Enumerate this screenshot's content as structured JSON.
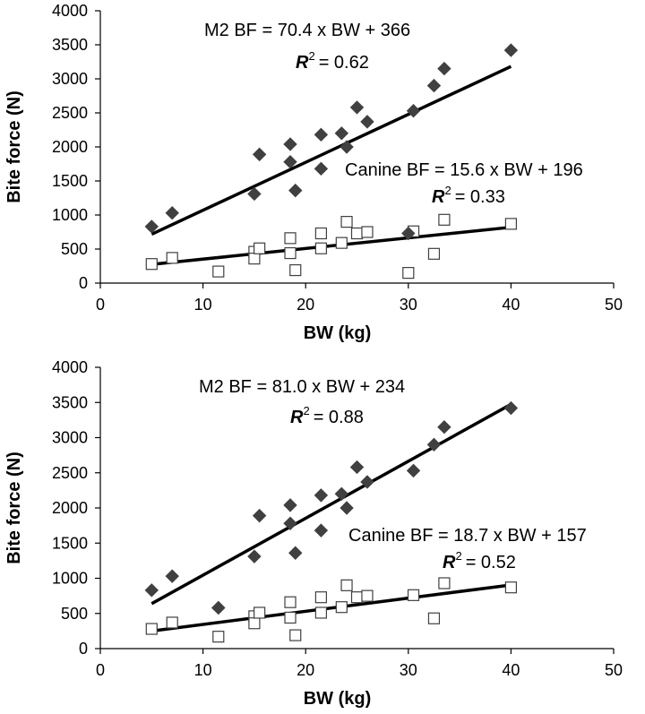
{
  "chart_data": [
    {
      "type": "scatter",
      "xlabel": "BW (kg)",
      "ylabel": "Bite force (N)",
      "xlim": [
        0,
        50
      ],
      "ylim": [
        0,
        4000
      ],
      "xticks": [
        "0",
        "10",
        "20",
        "30",
        "40",
        "50"
      ],
      "yticks": [
        "0",
        "500",
        "1000",
        "1500",
        "2000",
        "2500",
        "3000",
        "3500",
        "4000"
      ],
      "grid": false,
      "series": [
        {
          "marker": "filled-diamond",
          "color": "#404040",
          "x": [
            5,
            7,
            15,
            15.5,
            18.5,
            18.5,
            19,
            21.5,
            21.5,
            23.5,
            24,
            25,
            26,
            30.5,
            32.5,
            33.5,
            40
          ],
          "y": [
            830,
            1030,
            1310,
            1890,
            2040,
            1780,
            1360,
            2180,
            1680,
            2200,
            2000,
            2580,
            2370,
            2530,
            2900,
            3150,
            3420
          ],
          "fit": {
            "slope": 70.4,
            "intercept": 366,
            "x_range": [
              5,
              40
            ]
          },
          "equation": "M2 BF = 70.4 x BW + 366",
          "r2_value": "= 0.62"
        },
        {
          "marker": "open-square",
          "color": "#404040",
          "x": [
            5,
            7,
            11.5,
            15,
            15,
            15.5,
            18.5,
            18.5,
            19,
            21.5,
            21.5,
            23.5,
            24,
            25,
            26,
            30,
            30.5,
            32.5,
            33.5,
            40
          ],
          "y": [
            280,
            370,
            170,
            460,
            360,
            510,
            660,
            440,
            190,
            730,
            510,
            590,
            900,
            730,
            750,
            150,
            760,
            430,
            930,
            870
          ],
          "fit": {
            "slope": 15.6,
            "intercept": 196,
            "x_range": [
              5,
              40
            ]
          },
          "equation": "Canine BF = 15.6 x BW + 196",
          "r2_value": "= 0.33"
        }
      ],
      "extra_points": [
        {
          "marker": "filled-diamond",
          "x": 30,
          "y": 730
        }
      ]
    },
    {
      "type": "scatter",
      "xlabel": "BW (kg)",
      "ylabel": "Bite force (N)",
      "xlim": [
        0,
        50
      ],
      "ylim": [
        0,
        4000
      ],
      "xticks": [
        "0",
        "10",
        "20",
        "30",
        "40",
        "50"
      ],
      "yticks": [
        "0",
        "500",
        "1000",
        "1500",
        "2000",
        "2500",
        "3000",
        "3500",
        "4000"
      ],
      "grid": false,
      "series": [
        {
          "marker": "filled-diamond",
          "color": "#404040",
          "x": [
            5,
            7,
            11.5,
            15,
            15.5,
            18.5,
            18.5,
            19,
            21.5,
            21.5,
            23.5,
            24,
            25,
            26,
            30.5,
            32.5,
            33.5,
            40
          ],
          "y": [
            830,
            1030,
            580,
            1310,
            1890,
            2040,
            1780,
            1360,
            2180,
            1680,
            2200,
            2000,
            2580,
            2370,
            2530,
            2900,
            3150,
            3420
          ],
          "fit": {
            "slope": 81.0,
            "intercept": 234,
            "x_range": [
              5,
              40
            ]
          },
          "equation": "M2 BF = 81.0 x BW + 234",
          "r2_value": "= 0.88"
        },
        {
          "marker": "open-square",
          "color": "#404040",
          "x": [
            5,
            7,
            11.5,
            15,
            15,
            15.5,
            18.5,
            18.5,
            19,
            21.5,
            21.5,
            23.5,
            24,
            25,
            26,
            30.5,
            32.5,
            33.5,
            40
          ],
          "y": [
            280,
            370,
            170,
            460,
            360,
            510,
            660,
            440,
            190,
            730,
            510,
            590,
            900,
            730,
            750,
            760,
            430,
            930,
            870
          ],
          "fit": {
            "slope": 18.7,
            "intercept": 157,
            "x_range": [
              5,
              40
            ]
          },
          "equation": "Canine BF = 18.7 x BW + 157",
          "r2_value": "= 0.52"
        }
      ],
      "extra_points": [
        {
          "marker": "filled-diamond",
          "x": 11.5,
          "y": 580
        }
      ]
    }
  ]
}
